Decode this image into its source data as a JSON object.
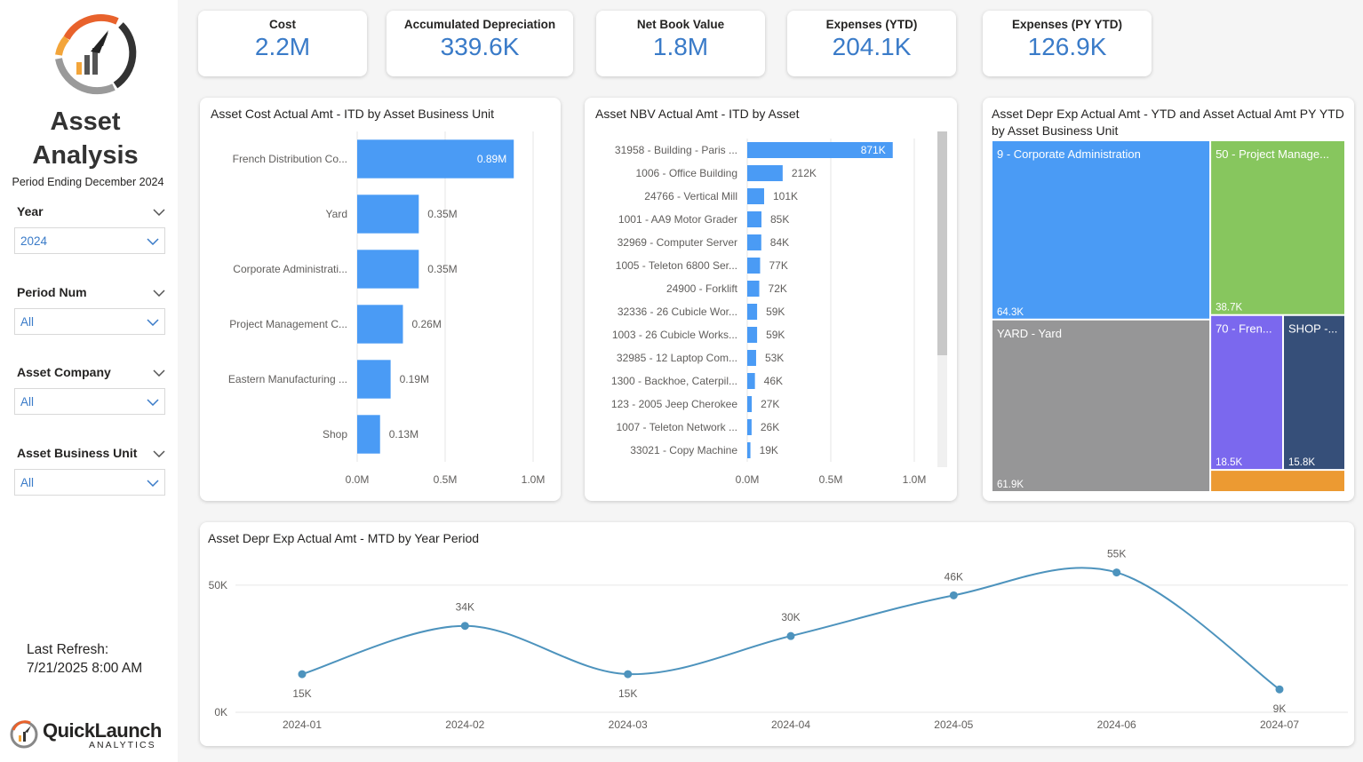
{
  "sidebar": {
    "title_line1": "Asset",
    "title_line2": "Analysis",
    "period_ending": "Period Ending December 2024",
    "slicers": [
      {
        "label": "Year",
        "value": "2024"
      },
      {
        "label": "Period Num",
        "value": "All"
      },
      {
        "label": "Asset Company",
        "value": "All"
      },
      {
        "label": "Asset Business Unit",
        "value": "All"
      }
    ],
    "last_refresh_label": "Last Refresh:",
    "last_refresh_value": "7/21/2025 8:00 AM",
    "brand_name": "QuickLaunch",
    "brand_sub": "ANALYTICS"
  },
  "kpis": [
    {
      "label": "Cost",
      "value": "2.2M"
    },
    {
      "label": "Accumulated Depreciation",
      "value": "339.6K"
    },
    {
      "label": "Net Book Value",
      "value": "1.8M"
    },
    {
      "label": "Expenses (YTD)",
      "value": "204.1K"
    },
    {
      "label": "Expenses (PY YTD)",
      "value": "126.9K"
    }
  ],
  "colors": {
    "bar": "#4a9bf5",
    "line": "#4d93bd",
    "accent": "#3a7bc8"
  },
  "chart_data": [
    {
      "type": "bar",
      "orientation": "horizontal",
      "title": "Asset Cost Actual Amt - ITD by Asset Business Unit",
      "categories": [
        "French Distribution Co...",
        "Yard",
        "Corporate Administrati...",
        "Project Management C...",
        "Eastern Manufacturing ...",
        "Shop"
      ],
      "values": [
        0.89,
        0.35,
        0.35,
        0.26,
        0.19,
        0.13
      ],
      "data_labels": [
        "0.89M",
        "0.35M",
        "0.35M",
        "0.26M",
        "0.19M",
        "0.13M"
      ],
      "xlim": [
        0,
        1.0
      ],
      "x_ticks": [
        "0.0M",
        "0.5M",
        "1.0M"
      ],
      "grid": true
    },
    {
      "type": "bar",
      "orientation": "horizontal",
      "title": "Asset NBV Actual Amt - ITD by Asset",
      "categories": [
        "31958 - Building - Paris ...",
        "1006 - Office Building",
        "24766 - Vertical Mill",
        "1001 - AA9 Motor Grader",
        "32969 - Computer Server",
        "1005 - Teleton 6800 Ser...",
        "24900 - Forklift",
        "32336 - 26 Cubicle Wor...",
        "1003 - 26 Cubicle Works...",
        "32985 - 12 Laptop Com...",
        "1300 - Backhoe, Caterpil...",
        "123 - 2005 Jeep Cherokee",
        "1007 - Teleton Network ...",
        "33021 - Copy Machine"
      ],
      "values": [
        871,
        212,
        101,
        85,
        84,
        77,
        72,
        59,
        59,
        53,
        46,
        27,
        26,
        19
      ],
      "data_labels": [
        "871K",
        "212K",
        "101K",
        "85K",
        "84K",
        "77K",
        "72K",
        "59K",
        "59K",
        "53K",
        "46K",
        "27K",
        "26K",
        "19K"
      ],
      "xlim": [
        0,
        1000
      ],
      "x_ticks": [
        "0.0M",
        "0.5M",
        "1.0M"
      ],
      "grid": true
    },
    {
      "type": "treemap",
      "title": "Asset Depr Exp Actual Amt - YTD and Asset Actual Amt PY YTD by Asset Business Unit",
      "title_line1": "Asset Depr Exp Actual Amt - YTD and Asset Actual Amt PY YTD",
      "title_line2": "by Asset Business Unit",
      "items": [
        {
          "name": "9 - Corporate Administration",
          "label": "64.3K",
          "value": 64.3,
          "color": "#4a9bf5"
        },
        {
          "name": "YARD - Yard",
          "label": "61.9K",
          "value": 61.9,
          "color": "#969697"
        },
        {
          "name": "50 - Project Manage...",
          "label": "38.7K",
          "value": 38.7,
          "color": "#87c65e"
        },
        {
          "name": "70 - Fren...",
          "label": "18.5K",
          "value": 18.5,
          "color": "#7b68ee"
        },
        {
          "name": "SHOP -...",
          "label": "15.8K",
          "value": 15.8,
          "color": "#364f79"
        },
        {
          "name": "",
          "label": "",
          "value": 4.9,
          "color": "#ec9a32"
        }
      ]
    },
    {
      "type": "line",
      "title": "Asset Depr Exp Actual Amt - MTD by Year Period",
      "x": [
        "2024-01",
        "2024-02",
        "2024-03",
        "2024-04",
        "2024-05",
        "2024-06",
        "2024-07"
      ],
      "values": [
        15,
        34,
        15,
        30,
        46,
        55,
        9
      ],
      "data_labels": [
        "15K",
        "34K",
        "15K",
        "30K",
        "46K",
        "55K",
        "9K"
      ],
      "ylim": [
        0,
        58
      ],
      "y_ticks": [
        {
          "label": "0K",
          "value": 0
        },
        {
          "label": "50K",
          "value": 50
        }
      ],
      "grid": true
    }
  ]
}
